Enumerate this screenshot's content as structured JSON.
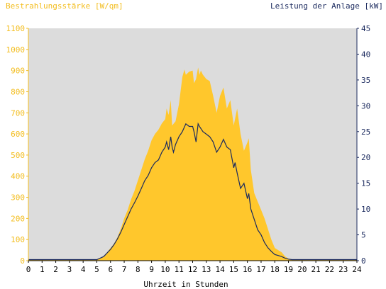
{
  "chart_data": {
    "type": "area",
    "title": "",
    "ylabel_left": "Bestrahlungsstärke [W/qm]",
    "ylabel_right": "Leistung der Anlage [kW]",
    "xlabel": "Uhrzeit in Stunden",
    "x_ticks": [
      "0",
      "1",
      "2",
      "3",
      "4",
      "5",
      "6",
      "7",
      "8",
      "9",
      "10",
      "11",
      "12",
      "13",
      "14",
      "15",
      "16",
      "17",
      "18",
      "19",
      "20",
      "21",
      "22",
      "23",
      "24"
    ],
    "y_left_ticks": [
      "0",
      "100",
      "200",
      "300",
      "400",
      "500",
      "600",
      "700",
      "800",
      "900",
      "1000",
      "1100"
    ],
    "y_right_ticks": [
      "0",
      "5",
      "10",
      "15",
      "20",
      "25",
      "30",
      "35",
      "40",
      "45"
    ],
    "xlim": [
      0,
      24
    ],
    "ylim_left": [
      0,
      1100
    ],
    "ylim_right": [
      0,
      45
    ],
    "grid": false,
    "colors": {
      "background": "#dcdcdc",
      "irradiance_fill": "#ffc72c",
      "power_line": "#1b2a5e",
      "left_axis": "#f3bd1e",
      "right_axis": "#1b2a5e"
    },
    "series": [
      {
        "type": "area",
        "axis": "left",
        "x": [
          0,
          5,
          5.5,
          6,
          6.25,
          6.5,
          6.75,
          7,
          7.25,
          7.5,
          7.75,
          8,
          8.25,
          8.5,
          8.75,
          9,
          9.25,
          9.5,
          9.75,
          10,
          10.1,
          10.25,
          10.4,
          10.5,
          10.75,
          11,
          11.25,
          11.4,
          11.5,
          11.75,
          12,
          12.1,
          12.25,
          12.4,
          12.5,
          12.6,
          12.75,
          13,
          13.25,
          13.5,
          13.75,
          14,
          14.25,
          14.5,
          14.75,
          15,
          15.25,
          15.5,
          15.75,
          16,
          16.1,
          16.25,
          16.5,
          16.75,
          17,
          17.25,
          17.5,
          17.75,
          18,
          18.25,
          18.5,
          18.75,
          19,
          19.25,
          19.5,
          20,
          24
        ],
        "y": [
          5,
          5,
          20,
          60,
          80,
          110,
          150,
          200,
          240,
          290,
          330,
          380,
          430,
          480,
          520,
          570,
          600,
          620,
          650,
          670,
          720,
          690,
          760,
          640,
          660,
          740,
          870,
          905,
          880,
          895,
          900,
          840,
          860,
          915,
          880,
          900,
          880,
          860,
          850,
          780,
          700,
          780,
          820,
          720,
          760,
          640,
          720,
          600,
          520,
          560,
          580,
          430,
          320,
          280,
          240,
          200,
          150,
          100,
          60,
          50,
          40,
          20,
          10,
          5,
          5,
          5,
          5
        ]
      },
      {
        "type": "line",
        "axis": "right",
        "x": [
          0,
          5,
          5.5,
          6,
          6.25,
          6.5,
          6.75,
          7,
          7.25,
          7.5,
          7.75,
          8,
          8.25,
          8.5,
          8.75,
          9,
          9.25,
          9.5,
          9.75,
          10,
          10.1,
          10.25,
          10.4,
          10.5,
          10.6,
          10.75,
          11,
          11.25,
          11.5,
          11.75,
          12,
          12.1,
          12.25,
          12.4,
          12.5,
          12.75,
          13,
          13.25,
          13.5,
          13.75,
          14,
          14.25,
          14.5,
          14.75,
          15,
          15.1,
          15.25,
          15.5,
          15.75,
          16,
          16.1,
          16.25,
          16.5,
          16.75,
          17,
          17.25,
          17.5,
          17.75,
          18,
          18.25,
          18.5,
          18.75,
          19,
          19.25,
          19.5,
          20,
          24
        ],
        "y": [
          0.2,
          0.2,
          0.8,
          2.2,
          3.1,
          4.2,
          5.5,
          7,
          8.5,
          10,
          11.2,
          12.5,
          14,
          15.5,
          16.5,
          18,
          19,
          19.5,
          21,
          22,
          23,
          21.5,
          24,
          22,
          21,
          22.5,
          24,
          25,
          26.5,
          26,
          26,
          25,
          23,
          26.5,
          26,
          25,
          24.5,
          24,
          23,
          21,
          22,
          23.5,
          22,
          21.5,
          18,
          19,
          17,
          14,
          15,
          12,
          13,
          10,
          8,
          6,
          5,
          3.5,
          2.5,
          1.8,
          1.2,
          1,
          0.8,
          0.5,
          0.3,
          0.2,
          0.2,
          0.2,
          0.2
        ]
      }
    ]
  }
}
